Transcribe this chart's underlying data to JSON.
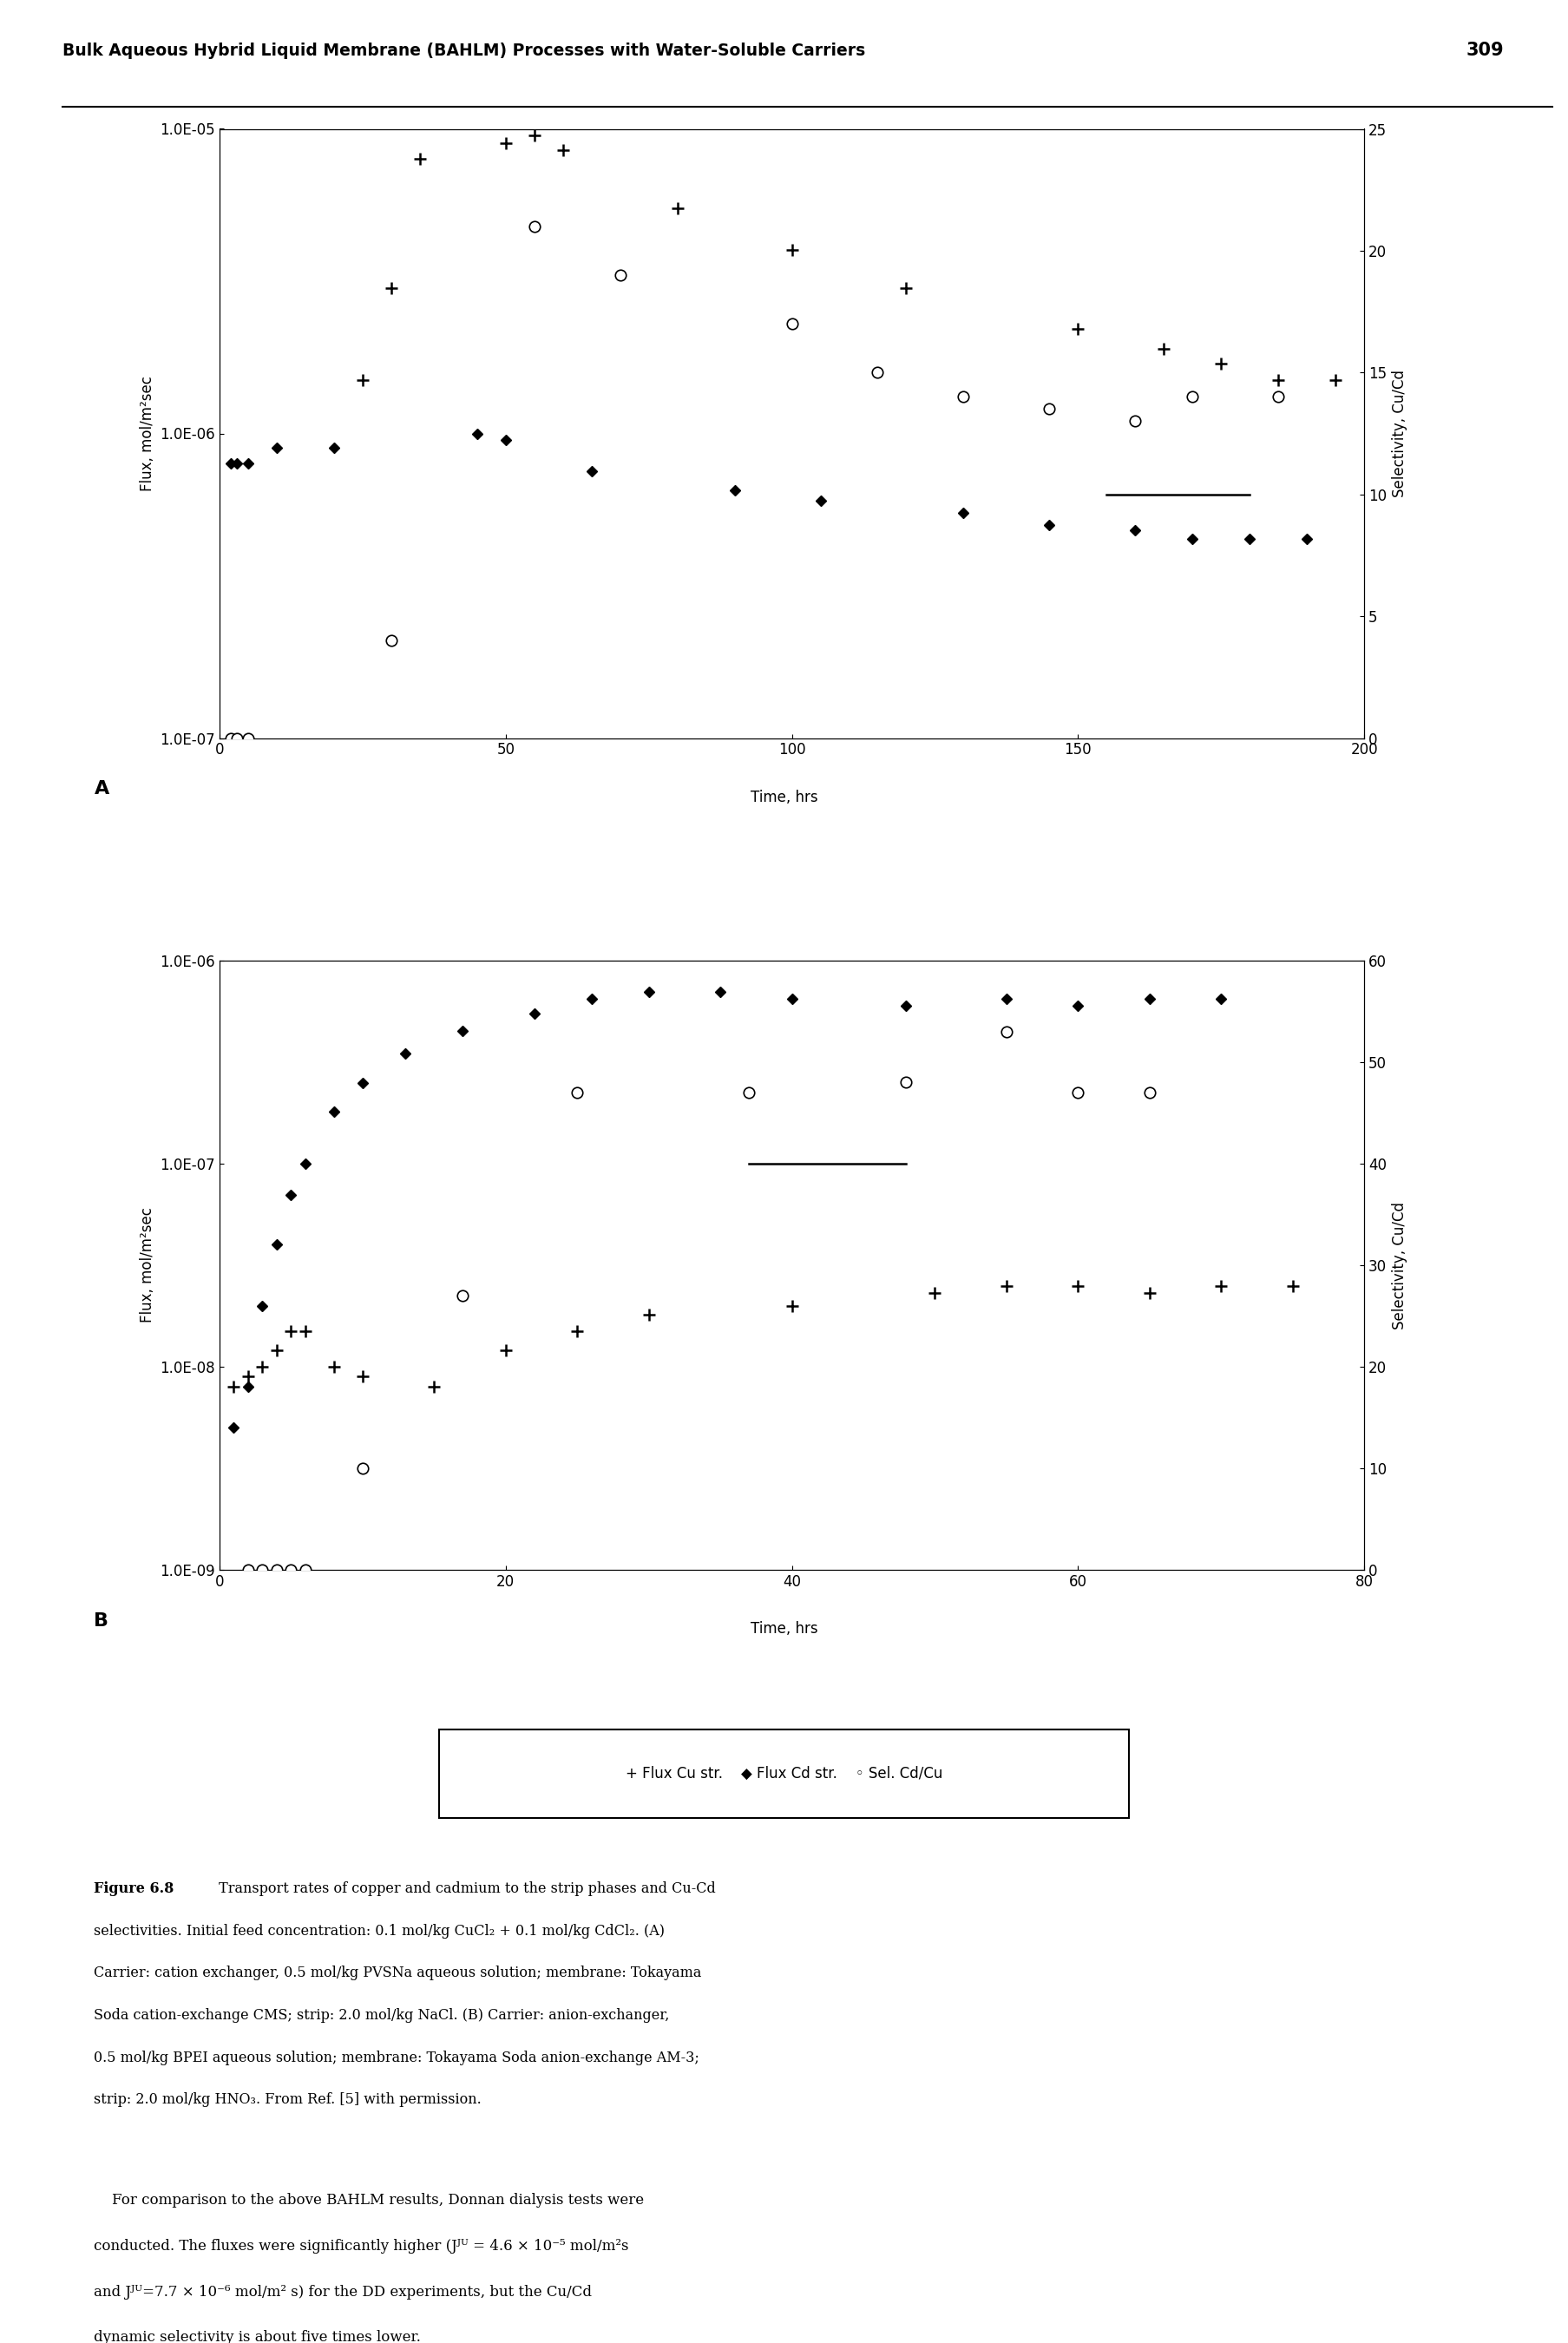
{
  "panel_A": {
    "xlabel": "Time, hrs",
    "ylabel_left": "Flux, mol/m²sec",
    "ylabel_right": "Selectivity, Cu/Cd",
    "xlim": [
      0,
      200
    ],
    "ylim_left": [
      1e-07,
      1e-05
    ],
    "ylim_right": [
      0,
      25
    ],
    "yticks_left": [
      1e-07,
      1e-06,
      1e-05
    ],
    "yticks_left_labels": [
      "1.0E-07",
      "1.0E-06",
      "1.0E-05"
    ],
    "yticks_right": [
      0,
      5,
      10,
      15,
      20,
      25
    ],
    "xticks": [
      0,
      50,
      100,
      150,
      200
    ],
    "flux_cu_x": [
      25,
      30,
      35,
      50,
      55,
      60,
      80,
      100,
      120,
      150,
      165,
      175,
      185,
      195
    ],
    "flux_cu_y": [
      1.5e-06,
      3e-06,
      8e-06,
      9e-06,
      9.5e-06,
      8.5e-06,
      5.5e-06,
      4e-06,
      3e-06,
      2.2e-06,
      1.9e-06,
      1.7e-06,
      1.5e-06,
      1.5e-06
    ],
    "flux_cd_x": [
      2,
      3,
      5,
      10,
      20,
      45,
      50,
      65,
      90,
      105,
      130,
      145,
      160,
      170,
      180,
      190
    ],
    "flux_cd_y": [
      8e-07,
      8e-07,
      8e-07,
      9e-07,
      9e-07,
      1e-06,
      9.5e-07,
      7.5e-07,
      6.5e-07,
      6e-07,
      5.5e-07,
      5e-07,
      4.8e-07,
      4.5e-07,
      4.5e-07,
      4.5e-07
    ],
    "sel_scatter_x": [
      2,
      3,
      5,
      30,
      55,
      70,
      100,
      115,
      130,
      145,
      160,
      170,
      185
    ],
    "sel_scatter_y": [
      0,
      0,
      0,
      4,
      21,
      19,
      17,
      15,
      14,
      13.5,
      13,
      14,
      14
    ],
    "sel_line_x": [
      155,
      180
    ],
    "sel_line_y": [
      10,
      10
    ]
  },
  "panel_B": {
    "xlabel": "Time, hrs",
    "ylabel_left": "Flux, mol/m²sec",
    "ylabel_right": "Selectivity, Cu/Cd",
    "xlim": [
      0,
      80
    ],
    "ylim_left": [
      1e-09,
      1e-06
    ],
    "ylim_right": [
      0,
      60
    ],
    "yticks_left": [
      1e-09,
      1e-08,
      1e-07,
      1e-06
    ],
    "yticks_left_labels": [
      "1.0E-09",
      "1.0E-08",
      "1.0E-07",
      "1.0E-06"
    ],
    "yticks_right": [
      0,
      10,
      20,
      30,
      40,
      50,
      60
    ],
    "xticks": [
      0,
      20,
      40,
      60,
      80
    ],
    "flux_cu_x": [
      1,
      2,
      3,
      4,
      5,
      6,
      8,
      10,
      15,
      20,
      25,
      30,
      40,
      50,
      55,
      60,
      65,
      70,
      75
    ],
    "flux_cu_y": [
      8e-09,
      9e-09,
      1e-08,
      1.2e-08,
      1.5e-08,
      1.5e-08,
      1e-08,
      9e-09,
      8e-09,
      1.2e-08,
      1.5e-08,
      1.8e-08,
      2e-08,
      2.3e-08,
      2.5e-08,
      2.5e-08,
      2.3e-08,
      2.5e-08,
      2.5e-08
    ],
    "flux_cd_x": [
      1,
      2,
      3,
      4,
      5,
      6,
      8,
      10,
      13,
      17,
      22,
      26,
      30,
      35,
      40,
      48,
      55,
      60,
      65,
      70
    ],
    "flux_cd_y": [
      5e-09,
      8e-09,
      2e-08,
      4e-08,
      7e-08,
      1e-07,
      1.8e-07,
      2.5e-07,
      3.5e-07,
      4.5e-07,
      5.5e-07,
      6.5e-07,
      7e-07,
      7e-07,
      6.5e-07,
      6e-07,
      6.5e-07,
      6e-07,
      6.5e-07,
      6.5e-07
    ],
    "sel_scatter_x": [
      2,
      3,
      4,
      5,
      6,
      10,
      17,
      25,
      37,
      48,
      55,
      60,
      65
    ],
    "sel_scatter_y": [
      0,
      0,
      0,
      0,
      0,
      10,
      27,
      47,
      47,
      48,
      53,
      47,
      47
    ],
    "sel_line_x": [
      37,
      48
    ],
    "sel_line_y": [
      40,
      40
    ]
  },
  "header_text": "Bulk Aqueous Hybrid Liquid Membrane (BAHLM) Processes with Water-Soluble Carriers",
  "header_page": "309"
}
